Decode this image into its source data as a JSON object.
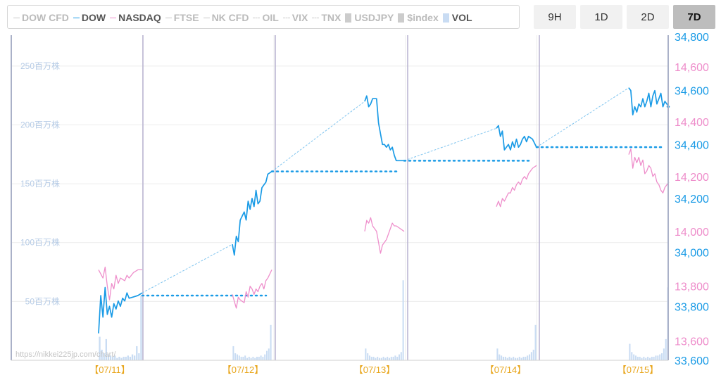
{
  "legend": [
    {
      "label": "DOW CFD",
      "style": "line",
      "color": "#c8c8c8",
      "text_color": "#bbbbbb"
    },
    {
      "label": "DOW",
      "style": "line",
      "color": "#1a9be6",
      "text_color": "#555555"
    },
    {
      "label": "NASDAQ",
      "style": "line",
      "color": "#ee8ecb",
      "text_color": "#555555"
    },
    {
      "label": "FTSE",
      "style": "line",
      "color": "#c8c8c8",
      "text_color": "#bbbbbb"
    },
    {
      "label": "NK CFD",
      "style": "line",
      "color": "#c8c8c8",
      "text_color": "#bbbbbb"
    },
    {
      "label": "OIL",
      "style": "dash",
      "color": "#c8c8c8",
      "text_color": "#bbbbbb"
    },
    {
      "label": "VIX",
      "style": "dash",
      "color": "#c8c8c8",
      "text_color": "#bbbbbb"
    },
    {
      "label": "TNX",
      "style": "dash",
      "color": "#c8c8c8",
      "text_color": "#bbbbbb"
    },
    {
      "label": "USDJPY",
      "style": "box",
      "color": "#cccccc",
      "text_color": "#bbbbbb"
    },
    {
      "label": "$index",
      "style": "box",
      "color": "#cccccc",
      "text_color": "#bbbbbb"
    },
    {
      "label": "VOL",
      "style": "box",
      "color": "#c9dcf3",
      "text_color": "#555555"
    }
  ],
  "range_buttons": [
    {
      "label": "9H",
      "active": false
    },
    {
      "label": "1D",
      "active": false
    },
    {
      "label": "2D",
      "active": false
    },
    {
      "label": "7D",
      "active": true
    }
  ],
  "watermark": "https://nikkei225jp.com/chart/",
  "colors": {
    "dow": "#1a9be6",
    "nasdaq": "#ee8ecb",
    "volume": "#c9dcf3",
    "day_label": "#e8a51a",
    "separator": "#b7b2d0"
  },
  "chart_data": {
    "type": "line",
    "x_labels": [
      "【07/11】",
      "【07/12】",
      "【07/13】",
      "【07/14】",
      "【07/15】"
    ],
    "volume_axis": {
      "ticks": [
        50,
        100,
        150,
        200,
        250
      ],
      "tick_suffix": "百万株",
      "range": [
        0,
        275
      ]
    },
    "dow_axis": {
      "ticks": [
        "33,600",
        "33,800",
        "34,000",
        "34,200",
        "34,400",
        "34,600",
        "34,800"
      ],
      "range": [
        33600,
        34800
      ]
    },
    "nasdaq_axis": {
      "ticks": [
        "13,600",
        "13,800",
        "14,000",
        "14,200",
        "14,400",
        "14,600"
      ],
      "range": [
        13530,
        14710
      ]
    },
    "series": [
      {
        "name": "DOW",
        "days": [
          [
            [
              0,
              33700
            ],
            [
              0.05,
              33840
            ],
            [
              0.1,
              33760
            ],
            [
              0.15,
              33870
            ],
            [
              0.2,
              33770
            ],
            [
              0.25,
              33800
            ],
            [
              0.3,
              33760
            ],
            [
              0.35,
              33810
            ],
            [
              0.4,
              33790
            ],
            [
              0.45,
              33820
            ],
            [
              0.5,
              33800
            ],
            [
              0.55,
              33830
            ],
            [
              0.6,
              33820
            ],
            [
              0.65,
              33850
            ],
            [
              0.7,
              33830
            ],
            [
              0.8,
              33835
            ],
            [
              0.9,
              33840
            ],
            [
              1,
              33850
            ]
          ],
          [
            [
              0,
              34030
            ],
            [
              0.05,
              33990
            ],
            [
              0.1,
              34060
            ],
            [
              0.15,
              34040
            ],
            [
              0.2,
              34120
            ],
            [
              0.3,
              34150
            ],
            [
              0.35,
              34120
            ],
            [
              0.4,
              34190
            ],
            [
              0.45,
              34160
            ],
            [
              0.5,
              34200
            ],
            [
              0.55,
              34170
            ],
            [
              0.6,
              34230
            ],
            [
              0.65,
              34180
            ],
            [
              0.7,
              34190
            ],
            [
              0.75,
              34240
            ],
            [
              0.8,
              34250
            ],
            [
              0.85,
              34260
            ],
            [
              0.9,
              34290
            ],
            [
              1,
              34300
            ]
          ],
          [
            [
              0,
              34560
            ],
            [
              0.05,
              34580
            ],
            [
              0.1,
              34540
            ],
            [
              0.15,
              34550
            ],
            [
              0.2,
              34570
            ],
            [
              0.3,
              34570
            ],
            [
              0.35,
              34480
            ],
            [
              0.4,
              34440
            ],
            [
              0.45,
              34400
            ],
            [
              0.5,
              34400
            ],
            [
              0.55,
              34390
            ],
            [
              0.6,
              34400
            ],
            [
              0.65,
              34380
            ],
            [
              0.7,
              34390
            ],
            [
              0.75,
              34360
            ],
            [
              0.8,
              34340
            ],
            [
              0.9,
              34340
            ],
            [
              1,
              34340
            ]
          ],
          [
            [
              0,
              34460
            ],
            [
              0.05,
              34470
            ],
            [
              0.1,
              34430
            ],
            [
              0.15,
              34450
            ],
            [
              0.2,
              34380
            ],
            [
              0.3,
              34400
            ],
            [
              0.35,
              34380
            ],
            [
              0.4,
              34410
            ],
            [
              0.45,
              34390
            ],
            [
              0.5,
              34420
            ],
            [
              0.55,
              34390
            ],
            [
              0.6,
              34400
            ],
            [
              0.65,
              34420
            ],
            [
              0.7,
              34430
            ],
            [
              0.75,
              34410
            ],
            [
              0.8,
              34430
            ],
            [
              0.9,
              34420
            ],
            [
              1,
              34390
            ]
          ],
          [
            [
              0,
              34610
            ],
            [
              0.05,
              34600
            ],
            [
              0.1,
              34510
            ],
            [
              0.15,
              34540
            ],
            [
              0.2,
              34520
            ],
            [
              0.25,
              34550
            ],
            [
              0.3,
              34540
            ],
            [
              0.35,
              34570
            ],
            [
              0.4,
              34540
            ],
            [
              0.45,
              34560
            ],
            [
              0.5,
              34590
            ],
            [
              0.55,
              34540
            ],
            [
              0.6,
              34580
            ],
            [
              0.65,
              34600
            ],
            [
              0.7,
              34550
            ],
            [
              0.75,
              34570
            ],
            [
              0.8,
              34590
            ],
            [
              0.85,
              34540
            ],
            [
              0.9,
              34560
            ],
            [
              1,
              34540
            ]
          ]
        ],
        "closes": [
          33840,
          34300,
          34340,
          34390,
          34540
        ]
      },
      {
        "name": "NASDAQ",
        "days": [
          [
            [
              0,
              13860
            ],
            [
              0.1,
              13830
            ],
            [
              0.15,
              13870
            ],
            [
              0.2,
              13800
            ],
            [
              0.25,
              13750
            ],
            [
              0.3,
              13810
            ],
            [
              0.35,
              13790
            ],
            [
              0.4,
              13840
            ],
            [
              0.45,
              13810
            ],
            [
              0.5,
              13830
            ],
            [
              0.6,
              13820
            ],
            [
              0.65,
              13840
            ],
            [
              0.7,
              13830
            ],
            [
              0.8,
              13850
            ],
            [
              0.9,
              13860
            ],
            [
              1,
              13860
            ]
          ],
          [
            [
              0,
              13770
            ],
            [
              0.1,
              13720
            ],
            [
              0.15,
              13760
            ],
            [
              0.2,
              13750
            ],
            [
              0.3,
              13740
            ],
            [
              0.35,
              13780
            ],
            [
              0.4,
              13760
            ],
            [
              0.45,
              13800
            ],
            [
              0.5,
              13790
            ],
            [
              0.55,
              13770
            ],
            [
              0.6,
              13790
            ],
            [
              0.65,
              13780
            ],
            [
              0.7,
              13800
            ],
            [
              0.75,
              13810
            ],
            [
              0.8,
              13790
            ],
            [
              0.85,
              13820
            ],
            [
              0.9,
              13830
            ],
            [
              1,
              13860
            ]
          ],
          [
            [
              0,
              14000
            ],
            [
              0.05,
              14040
            ],
            [
              0.1,
              14030
            ],
            [
              0.15,
              14050
            ],
            [
              0.2,
              14020
            ],
            [
              0.3,
              14000
            ],
            [
              0.35,
              13960
            ],
            [
              0.4,
              13920
            ],
            [
              0.45,
              13950
            ],
            [
              0.5,
              13960
            ],
            [
              0.55,
              13970
            ],
            [
              0.6,
              13990
            ],
            [
              0.65,
              14010
            ],
            [
              0.7,
              14030
            ],
            [
              0.75,
              14020
            ],
            [
              0.8,
              14020
            ],
            [
              0.9,
              14010
            ],
            [
              1,
              14000
            ]
          ],
          [
            [
              0,
              14090
            ],
            [
              0.05,
              14110
            ],
            [
              0.1,
              14090
            ],
            [
              0.15,
              14120
            ],
            [
              0.2,
              14110
            ],
            [
              0.3,
              14140
            ],
            [
              0.35,
              14140
            ],
            [
              0.4,
              14160
            ],
            [
              0.45,
              14150
            ],
            [
              0.5,
              14170
            ],
            [
              0.55,
              14180
            ],
            [
              0.6,
              14170
            ],
            [
              0.65,
              14190
            ],
            [
              0.7,
              14200
            ],
            [
              0.75,
              14190
            ],
            [
              0.8,
              14210
            ],
            [
              0.9,
              14230
            ],
            [
              1,
              14240
            ]
          ],
          [
            [
              0,
              14280
            ],
            [
              0.05,
              14300
            ],
            [
              0.1,
              14230
            ],
            [
              0.15,
              14270
            ],
            [
              0.2,
              14250
            ],
            [
              0.25,
              14270
            ],
            [
              0.3,
              14240
            ],
            [
              0.35,
              14260
            ],
            [
              0.4,
              14210
            ],
            [
              0.45,
              14220
            ],
            [
              0.5,
              14240
            ],
            [
              0.55,
              14230
            ],
            [
              0.6,
              14200
            ],
            [
              0.65,
              14210
            ],
            [
              0.7,
              14180
            ],
            [
              0.75,
              14170
            ],
            [
              0.8,
              14150
            ],
            [
              0.85,
              14140
            ],
            [
              0.9,
              14160
            ],
            [
              1,
              14180
            ]
          ]
        ]
      },
      {
        "name": "VOL",
        "days": [
          [
            20,
            9,
            6,
            18,
            5,
            4,
            3,
            4,
            2,
            3,
            2,
            3,
            3,
            4,
            3,
            5,
            4,
            12,
            6,
            55
          ],
          [
            12,
            6,
            5,
            4,
            3,
            3,
            4,
            2,
            3,
            2,
            3,
            2,
            3,
            3,
            4,
            3,
            5,
            8,
            10,
            30
          ],
          [
            10,
            6,
            4,
            3,
            3,
            2,
            3,
            2,
            2,
            3,
            2,
            3,
            2,
            3,
            3,
            4,
            3,
            5,
            7,
            68
          ],
          [
            10,
            5,
            4,
            3,
            3,
            2,
            3,
            2,
            3,
            2,
            2,
            3,
            2,
            3,
            3,
            4,
            5,
            7,
            9,
            30
          ],
          [
            14,
            7,
            5,
            4,
            3,
            3,
            2,
            3,
            2,
            3,
            2,
            3,
            3,
            4,
            4,
            5,
            6,
            10,
            18,
            62
          ]
        ]
      }
    ],
    "grid": true
  }
}
